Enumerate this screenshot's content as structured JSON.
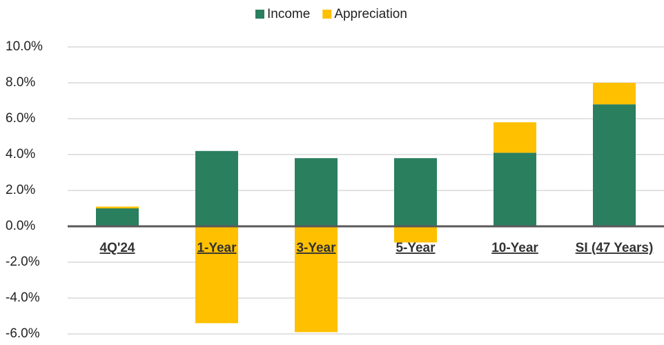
{
  "chart_data": {
    "type": "stacked-bar",
    "categories": [
      "4Q'24",
      "1-Year",
      "3-Year",
      "5-Year",
      "10-Year",
      "SI (47 Years)"
    ],
    "series": [
      {
        "name": "Income",
        "color": "#2a7f5f",
        "values": [
          1.0,
          4.2,
          3.8,
          3.8,
          4.1,
          6.8
        ]
      },
      {
        "name": "Appreciation",
        "color": "#ffc000",
        "values": [
          0.1,
          -5.4,
          -5.9,
          -0.9,
          1.7,
          1.2
        ]
      }
    ],
    "ylim": [
      -6,
      10
    ],
    "yticks": [
      {
        "value": -6,
        "label": "-6.0%"
      },
      {
        "value": -4,
        "label": "-4.0%"
      },
      {
        "value": -2,
        "label": "-2.0%"
      },
      {
        "value": 0,
        "label": "0.0%"
      },
      {
        "value": 2,
        "label": "2.0%"
      },
      {
        "value": 4,
        "label": "4.0%"
      },
      {
        "value": 6,
        "label": "6.0%"
      },
      {
        "value": 8,
        "label": "8.0%"
      },
      {
        "value": 10,
        "label": "10.0%"
      }
    ],
    "grid": true,
    "legend": "top"
  }
}
